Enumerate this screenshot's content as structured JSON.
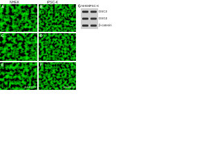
{
  "column_headers": [
    "NHEK",
    "iPSC-K"
  ],
  "panels": [
    {
      "label": "A"
    },
    {
      "label": "B"
    },
    {
      "label": "C"
    },
    {
      "label": "D"
    },
    {
      "label": "E",
      "caption": "β-catenin"
    },
    {
      "label": "F",
      "caption": "β-catenin"
    }
  ],
  "blot": {
    "label": "G",
    "lanes": [
      "NHEK",
      "iPSC-K"
    ],
    "rows": [
      "DSC3",
      "DSG3",
      "β-catenin"
    ]
  }
}
